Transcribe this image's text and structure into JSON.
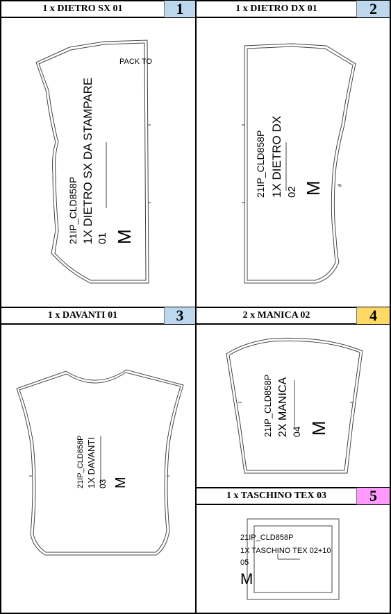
{
  "pieces": [
    {
      "title": "1 x DIETRO SX 01",
      "number": "1",
      "number_color": "#bdd7ee",
      "labels": {
        "code": "21IP_CLD858P",
        "name": "1X DIETRO SX DA STAMPARE",
        "index": "01",
        "size": "M",
        "extra": "PACK TO"
      }
    },
    {
      "title": "1 x DIETRO DX 01",
      "number": "2",
      "number_color": "#bdd7ee",
      "labels": {
        "code": "21IP_CLD858P",
        "name": "1X DIETRO DX",
        "index": "02",
        "size": "M"
      }
    },
    {
      "title": "1 x DAVANTI 01",
      "number": "3",
      "number_color": "#bdd7ee",
      "labels": {
        "code": "21IP_CLD858P",
        "name": "1X DAVANTI",
        "index": "03",
        "size": "M"
      }
    },
    {
      "title": "2 x MANICA 02",
      "number": "4",
      "number_color": "#ffd966",
      "labels": {
        "code": "21IP_CLD858P",
        "name": "2X MANICA",
        "index": "04",
        "size": "M"
      }
    },
    {
      "title": "1 x TASCHINO TEX 03",
      "number": "5",
      "number_color": "#ff99ff",
      "labels": {
        "code": "21IP_CLD858P",
        "name": "1X TASCHINO TEX 02+10",
        "index": "05",
        "size": "M"
      }
    }
  ]
}
